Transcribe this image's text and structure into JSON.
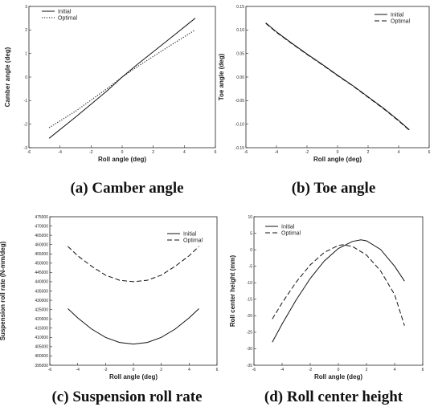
{
  "captions": [
    "(a) Camber angle",
    "(b) Toe angle",
    "(c) Suspension roll rate",
    "(d) Roll center height"
  ],
  "chart_data": [
    {
      "type": "line",
      "title": "",
      "xlabel": "Roll angle (deg)",
      "ylabel": "Camber angle (deg)",
      "xlim": [
        -6,
        6
      ],
      "ylim": [
        -3,
        3
      ],
      "xticks": [
        "-6",
        "-4",
        "-2",
        "0",
        "2",
        "4",
        "6"
      ],
      "yticks": [
        "-3",
        "-2",
        "-1",
        "0",
        "1",
        "2",
        "3"
      ],
      "legend": "top-left",
      "series": [
        {
          "name": "Initial",
          "style": "solid",
          "x": [
            -4.7,
            -3,
            -1,
            0,
            1,
            3,
            4.7
          ],
          "y": [
            -2.6,
            -1.7,
            -0.6,
            0,
            0.55,
            1.6,
            2.5
          ]
        },
        {
          "name": "Optimal",
          "style": "dotted",
          "x": [
            -4.7,
            -3,
            -1,
            0,
            1,
            3,
            4.7
          ],
          "y": [
            -2.15,
            -1.45,
            -0.5,
            0,
            0.45,
            1.3,
            2.0
          ]
        }
      ]
    },
    {
      "type": "line",
      "title": "",
      "xlabel": "Roll angle (deg)",
      "ylabel": "Toe angle (deg)",
      "xlim": [
        -6,
        6
      ],
      "ylim": [
        -0.15,
        0.15
      ],
      "xticks": [
        "-6",
        "-4",
        "-2",
        "0",
        "2",
        "4",
        "6"
      ],
      "yticks": [
        "-0.15",
        "-0.10",
        "-0.05",
        "0.00",
        "0.05",
        "0.10",
        "0.15"
      ],
      "legend": "top-right",
      "series": [
        {
          "name": "Initial",
          "style": "solid",
          "x": [
            -4.7,
            -4,
            -3,
            -2,
            -1,
            0,
            1,
            2,
            3,
            4,
            4.7
          ],
          "y": [
            0.115,
            0.096,
            0.072,
            0.049,
            0.027,
            0.004,
            -0.018,
            -0.042,
            -0.066,
            -0.092,
            -0.112
          ]
        },
        {
          "name": "Optimal",
          "style": "dashed",
          "x": [
            -4.7,
            -4,
            -3,
            -2,
            -1,
            0,
            1,
            2,
            3,
            4,
            4.7
          ],
          "y": [
            0.114,
            0.095,
            0.071,
            0.048,
            0.026,
            0.003,
            -0.019,
            -0.043,
            -0.067,
            -0.093,
            -0.113
          ]
        }
      ]
    },
    {
      "type": "line",
      "title": "",
      "xlabel": "Roll angle (deg)",
      "ylabel": "Suspension roll rate (N-mm/deg)",
      "xlim": [
        -6,
        6
      ],
      "ylim": [
        395000,
        475000
      ],
      "xticks": [
        "-6",
        "-4",
        "-2",
        "0",
        "2",
        "4",
        "6"
      ],
      "yticks": [
        "395000",
        "400000",
        "405000",
        "410000",
        "415000",
        "420000",
        "425000",
        "430000",
        "435000",
        "440000",
        "445000",
        "450000",
        "455000",
        "460000",
        "465000",
        "470000",
        "475000"
      ],
      "legend": "top-right",
      "series": [
        {
          "name": "Initial",
          "style": "solid",
          "x": [
            -4.7,
            -4,
            -3,
            -2,
            -1,
            0,
            1,
            2,
            3,
            4,
            4.7
          ],
          "y": [
            425500,
            420500,
            414500,
            410000,
            407300,
            406400,
            407300,
            410000,
            414500,
            420500,
            425500
          ]
        },
        {
          "name": "Optimal",
          "style": "dashed",
          "x": [
            -4.7,
            -4,
            -3,
            -2,
            -1,
            0,
            1,
            2,
            3,
            4,
            4.7
          ],
          "y": [
            459000,
            454000,
            448300,
            443500,
            440800,
            440000,
            440800,
            443500,
            448300,
            454000,
            459000
          ]
        }
      ]
    },
    {
      "type": "line",
      "title": "",
      "xlabel": "Roll angle (deg)",
      "ylabel": "Roll center height (mm)",
      "xlim": [
        -6,
        6
      ],
      "ylim": [
        -35,
        10
      ],
      "xticks": [
        "-6",
        "-4",
        "-2",
        "0",
        "2",
        "4",
        "6"
      ],
      "yticks": [
        "-35",
        "-30",
        "-25",
        "-20",
        "-15",
        "-10",
        "-5",
        "0",
        "5",
        "10"
      ],
      "legend": "top-left",
      "series": [
        {
          "name": "Initial",
          "style": "solid",
          "x": [
            -4.7,
            -4,
            -3,
            -2,
            -1,
            0,
            1,
            1.6,
            2,
            3,
            4,
            4.7
          ],
          "y": [
            -28,
            -22.5,
            -15.2,
            -8.7,
            -3.4,
            0.4,
            2.5,
            3,
            2.7,
            0.1,
            -5,
            -9.5
          ]
        },
        {
          "name": "Optimal",
          "style": "dashed",
          "x": [
            -4.7,
            -4,
            -3,
            -2,
            -1,
            0,
            0.3,
            1,
            2,
            3,
            4,
            4.7
          ],
          "y": [
            -21,
            -16.1,
            -9.8,
            -4.6,
            -0.8,
            1.3,
            1.5,
            1,
            -1.6,
            -6.4,
            -13.6,
            -23
          ]
        }
      ]
    }
  ]
}
